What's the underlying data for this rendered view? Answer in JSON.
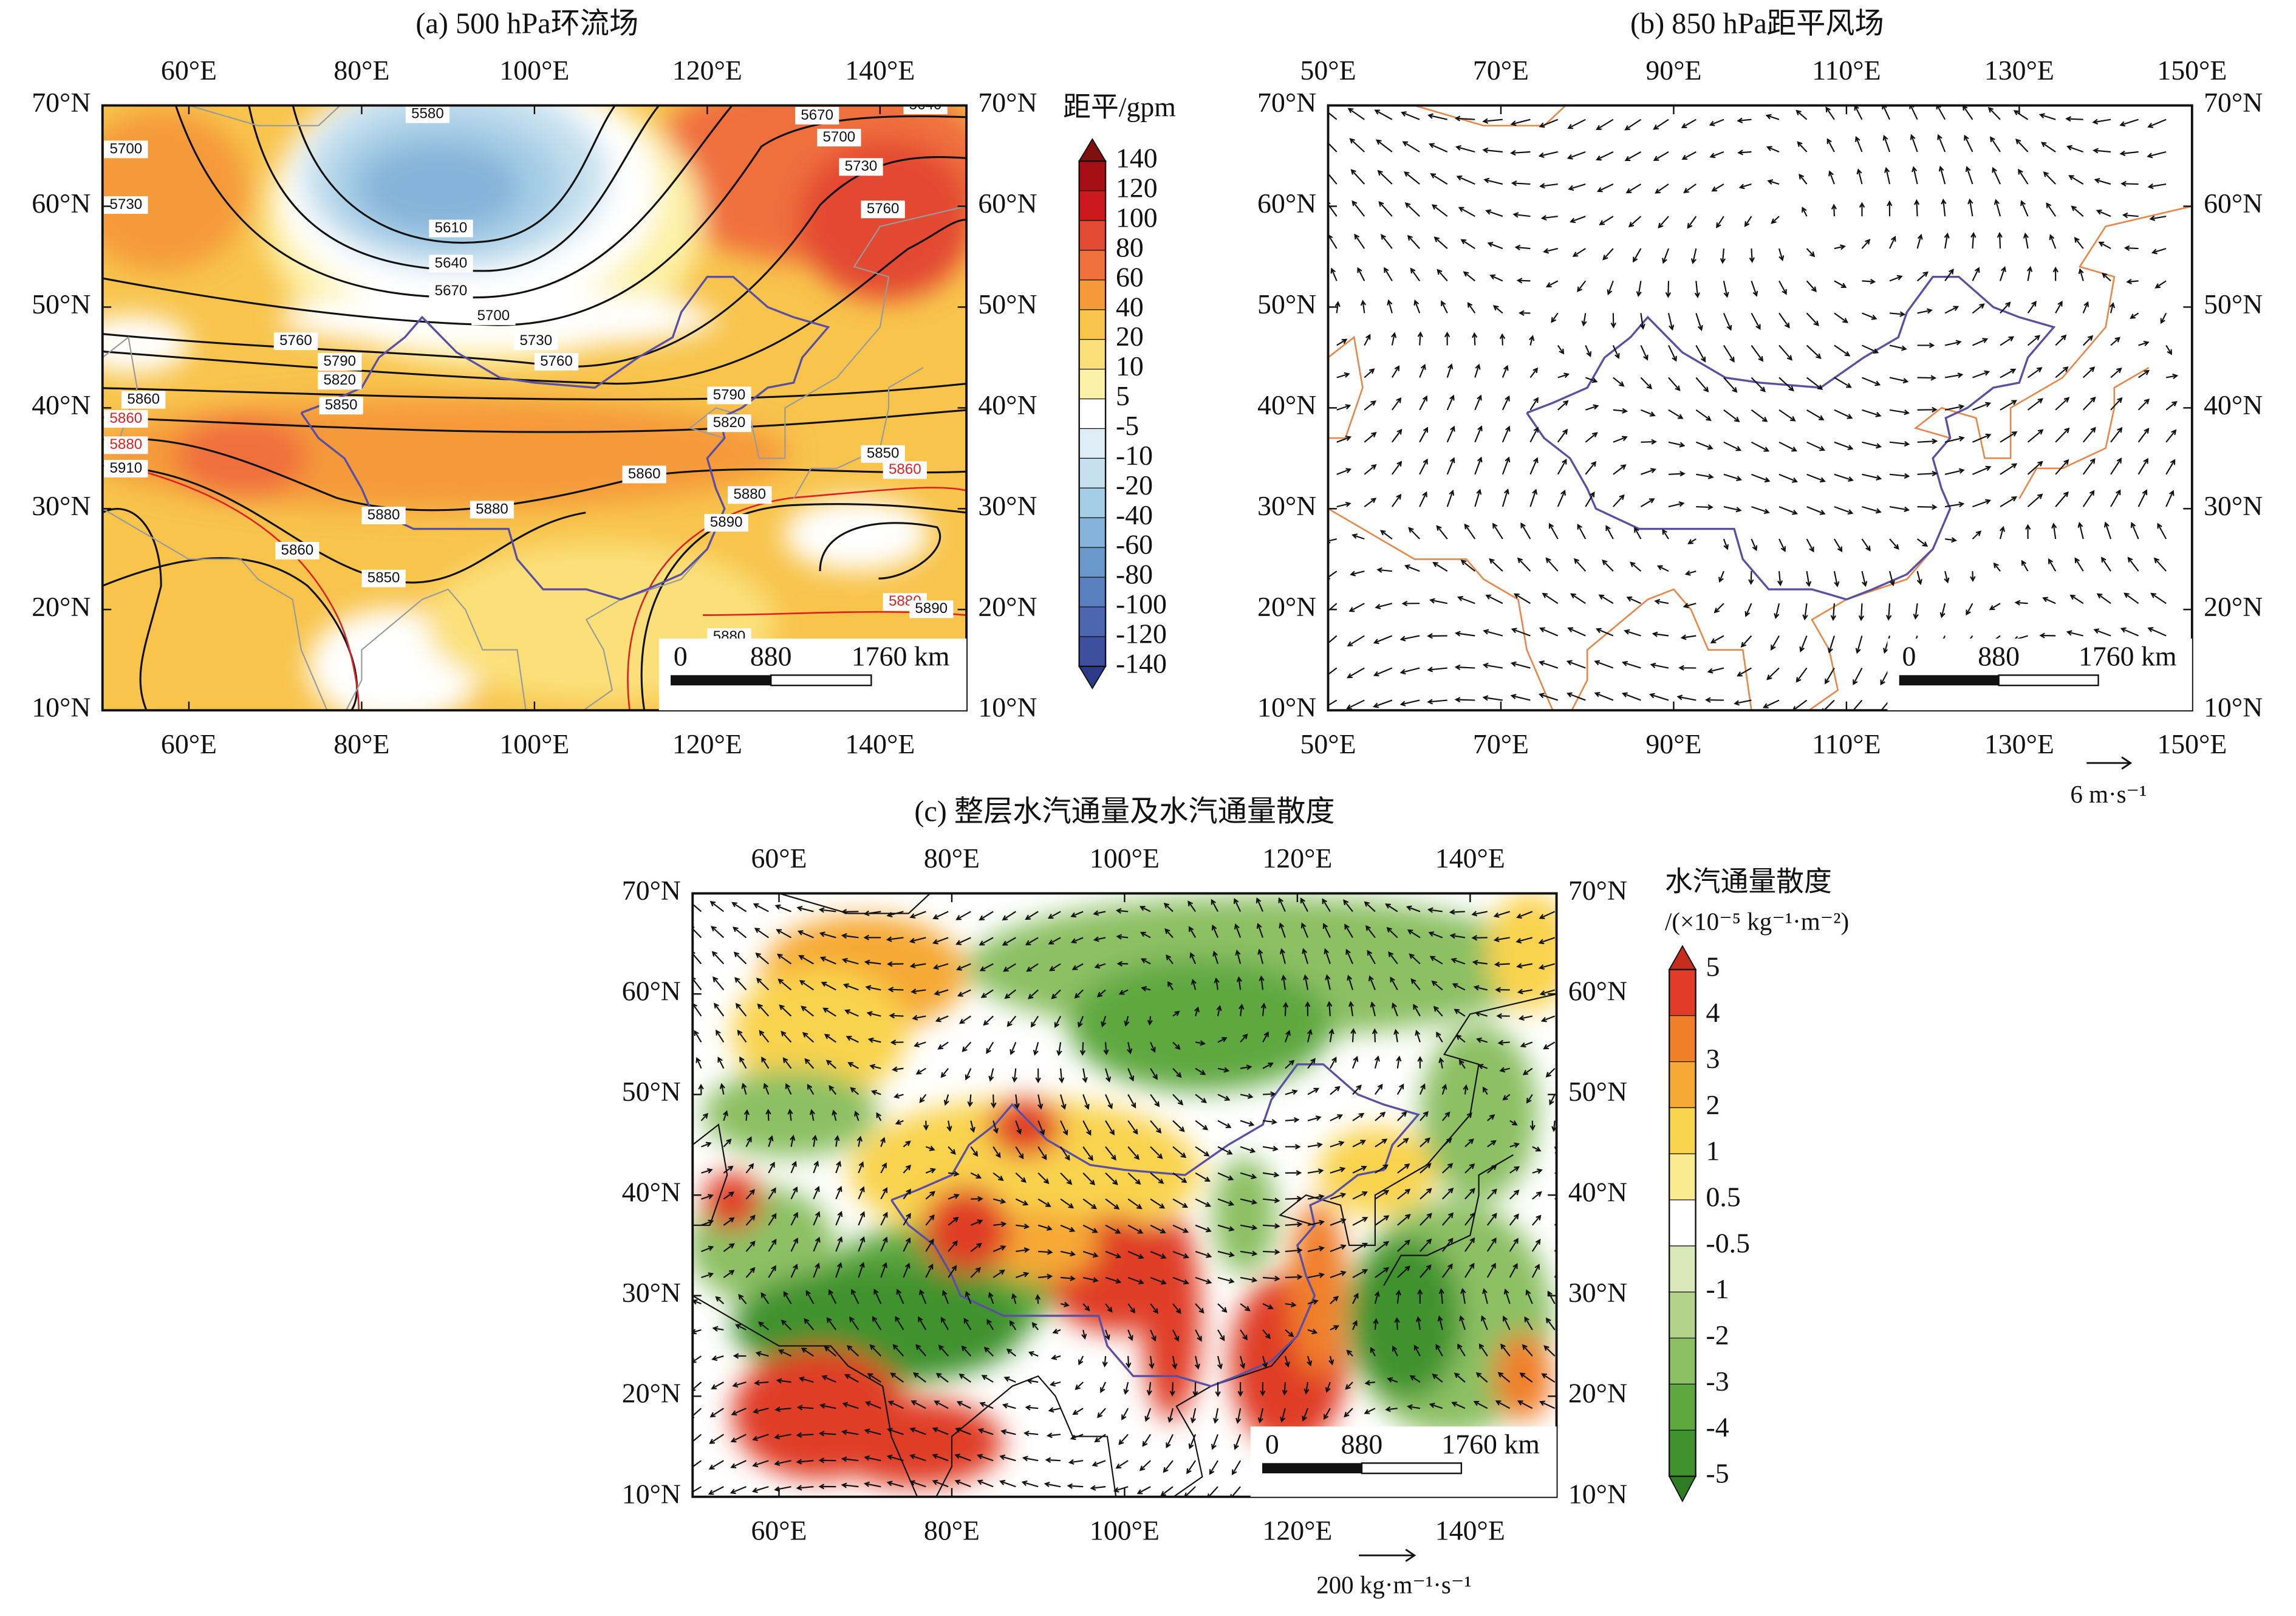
{
  "panels": [
    {
      "title": "(a) 500 hPa环流场",
      "lonlim": [
        50,
        150
      ],
      "latlim": [
        10,
        70
      ],
      "lon_ticks": [
        {
          "value": 60,
          "label": "60°E"
        },
        {
          "value": 80,
          "label": "80°E"
        },
        {
          "value": 100,
          "label": "100°E"
        },
        {
          "value": 120,
          "label": "120°E"
        },
        {
          "value": 140,
          "label": "140°E"
        }
      ],
      "lat_ticks": [
        {
          "value": 70,
          "label": "70°N"
        },
        {
          "value": 60,
          "label": "60°N"
        },
        {
          "value": 50,
          "label": "50°N"
        },
        {
          "value": 40,
          "label": "40°N"
        },
        {
          "value": 30,
          "label": "30°N"
        },
        {
          "value": 20,
          "label": "20°N"
        },
        {
          "value": 10,
          "label": "10°N"
        }
      ],
      "contour_labels": [
        5580,
        5610,
        5640,
        5670,
        5700,
        5730,
        5760,
        5760,
        5790,
        5820,
        5850,
        5860,
        5860,
        5880,
        5910,
        5790,
        5820,
        5860,
        5880,
        5880,
        5860,
        5850,
        5880,
        5890,
        5850,
        5860,
        5880,
        5890,
        5670,
        5700,
        5730,
        5760,
        5640,
        5700,
        5730,
        5880
      ],
      "scale_bar": [
        "0",
        "880",
        "1760 km"
      ]
    },
    {
      "title": "(b) 850 hPa距平风场",
      "lonlim": [
        50,
        150
      ],
      "latlim": [
        10,
        70
      ],
      "lon_ticks": [
        {
          "value": 50,
          "label": "50°E"
        },
        {
          "value": 70,
          "label": "70°E"
        },
        {
          "value": 90,
          "label": "90°E"
        },
        {
          "value": 110,
          "label": "110°E"
        },
        {
          "value": 130,
          "label": "130°E"
        },
        {
          "value": 150,
          "label": "150°E"
        }
      ],
      "lat_ticks": [
        {
          "value": 70,
          "label": "70°N"
        },
        {
          "value": 60,
          "label": "60°N"
        },
        {
          "value": 50,
          "label": "50°N"
        },
        {
          "value": 40,
          "label": "40°N"
        },
        {
          "value": 30,
          "label": "30°N"
        },
        {
          "value": 20,
          "label": "20°N"
        },
        {
          "value": 10,
          "label": "10°N"
        }
      ],
      "scale_bar": [
        "0",
        "880",
        "1760 km"
      ],
      "reference_vector": "6 m·s⁻¹"
    },
    {
      "title": "(c) 整层水汽通量及水汽通量散度",
      "lonlim": [
        50,
        150
      ],
      "latlim": [
        10,
        70
      ],
      "lon_ticks": [
        {
          "value": 60,
          "label": "60°E"
        },
        {
          "value": 80,
          "label": "80°E"
        },
        {
          "value": 100,
          "label": "100°E"
        },
        {
          "value": 120,
          "label": "120°E"
        },
        {
          "value": 140,
          "label": "140°E"
        }
      ],
      "lat_ticks": [
        {
          "value": 70,
          "label": "70°N"
        },
        {
          "value": 60,
          "label": "60°N"
        },
        {
          "value": 50,
          "label": "50°N"
        },
        {
          "value": 40,
          "label": "40°N"
        },
        {
          "value": 30,
          "label": "30°N"
        },
        {
          "value": 20,
          "label": "20°N"
        },
        {
          "value": 10,
          "label": "10°N"
        }
      ],
      "scale_bar": [
        "0",
        "880",
        "1760 km"
      ],
      "reference_vector": "200 kg·m⁻¹·s⁻¹"
    }
  ],
  "colorbars": [
    {
      "title": "距平/gpm",
      "labels": [
        140,
        120,
        100,
        80,
        60,
        40,
        20,
        10,
        5,
        -5,
        -10,
        -20,
        -40,
        -60,
        -80,
        -100,
        -120,
        -140
      ],
      "colors": [
        "#7f1010",
        "#a50f15",
        "#cb181d",
        "#e34a33",
        "#f0703c",
        "#f59a3a",
        "#f8c44c",
        "#fbe07a",
        "#fdf1a8",
        "#ffffff",
        "#dfeef6",
        "#c6e0ef",
        "#a6cde6",
        "#85b3d9",
        "#6a98cb",
        "#5a7fbf",
        "#4c67b0",
        "#3f4fa0",
        "#2c3a8a"
      ]
    },
    {
      "title": "水汽通量散度",
      "unit": "/(×10⁻⁵ kg⁻¹·m⁻²)",
      "labels": [
        5,
        4,
        3,
        2,
        1,
        0.5,
        -0.5,
        -1,
        -2,
        -3,
        -4,
        -5
      ],
      "colors": [
        "#c62d1f",
        "#e03c28",
        "#f07f2a",
        "#f6a935",
        "#f9d34e",
        "#fbeb90",
        "#ffffff",
        "#d8e8b8",
        "#b4d38a",
        "#8cc063",
        "#5fa83f",
        "#3f922e",
        "#2e7d24"
      ]
    }
  ]
}
